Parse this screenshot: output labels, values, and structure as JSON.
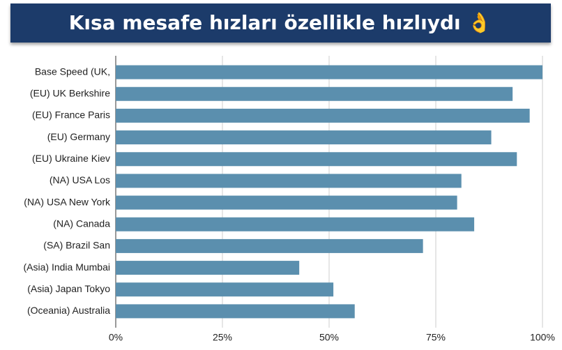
{
  "chart_data": {
    "type": "bar",
    "orientation": "horizontal",
    "title": "Kısa mesafe hızları özellikle hızlıydı 👌",
    "categories": [
      "Base Speed (UK,",
      "(EU) UK Berkshire",
      "(EU) France Paris",
      "(EU) Germany",
      "(EU) Ukraine Kiev",
      "(NA) USA Los",
      "(NA) USA New York",
      "(NA) Canada",
      "(SA) Brazil San",
      "(Asia) India Mumbai",
      "(Asia) Japan Tokyo",
      "(Oceania) Australia"
    ],
    "values": [
      100,
      93,
      97,
      88,
      94,
      81,
      80,
      84,
      72,
      43,
      51,
      56
    ],
    "color": "#5b8fae",
    "xlim": [
      0,
      100
    ],
    "xticks": [
      {
        "value": 0,
        "label": "0%"
      },
      {
        "value": 25,
        "label": "25%"
      },
      {
        "value": 50,
        "label": "50%"
      },
      {
        "value": 75,
        "label": "75%"
      },
      {
        "value": 100,
        "label": "100%"
      }
    ],
    "grid": true
  }
}
